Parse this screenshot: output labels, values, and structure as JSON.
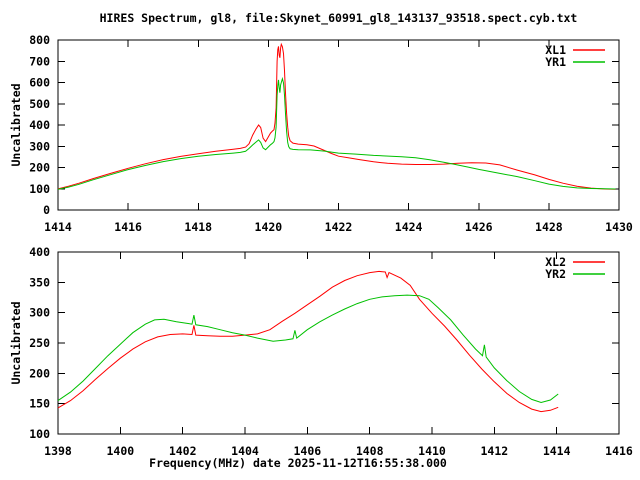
{
  "title": "HIRES Spectrum, gl8, file:Skynet_60991_gl8_143137_93518.spect.cyb.txt",
  "xlabel": "Frequency(MHz) date 2025-11-12T16:55:38.000",
  "colors": {
    "series_red": "#ff0000",
    "series_green": "#00c000",
    "axis": "#000000",
    "background": "#ffffff"
  },
  "chart_data": [
    {
      "type": "line",
      "ylabel": "Uncalibrated",
      "xlim": [
        1414,
        1430
      ],
      "ylim": [
        0,
        800
      ],
      "xticks": [
        1414,
        1416,
        1418,
        1420,
        1422,
        1424,
        1426,
        1428,
        1430
      ],
      "yticks": [
        0,
        100,
        200,
        300,
        400,
        500,
        600,
        700,
        800
      ],
      "grid": false,
      "legend_position": "top-right",
      "series": [
        {
          "name": "XL1",
          "color": "#ff0000",
          "points": [
            [
              1414,
              100
            ],
            [
              1414.3,
              112
            ],
            [
              1414.6,
              126
            ],
            [
              1415,
              148
            ],
            [
              1415.5,
              172
            ],
            [
              1416,
              196
            ],
            [
              1416.5,
              218
            ],
            [
              1417,
              237
            ],
            [
              1417.5,
              252
            ],
            [
              1418,
              265
            ],
            [
              1418.5,
              276
            ],
            [
              1419,
              286
            ],
            [
              1419.2,
              290
            ],
            [
              1419.35,
              296
            ],
            [
              1419.45,
              312
            ],
            [
              1419.55,
              352
            ],
            [
              1419.65,
              382
            ],
            [
              1419.72,
              400
            ],
            [
              1419.78,
              388
            ],
            [
              1419.85,
              338
            ],
            [
              1419.92,
              322
            ],
            [
              1420,
              345
            ],
            [
              1420.06,
              362
            ],
            [
              1420.12,
              372
            ],
            [
              1420.16,
              378
            ],
            [
              1420.19,
              410
            ],
            [
              1420.22,
              480
            ],
            [
              1420.25,
              700
            ],
            [
              1420.27,
              755
            ],
            [
              1420.29,
              770
            ],
            [
              1420.31,
              728
            ],
            [
              1420.33,
              716
            ],
            [
              1420.35,
              762
            ],
            [
              1420.37,
              780
            ],
            [
              1420.4,
              768
            ],
            [
              1420.43,
              736
            ],
            [
              1420.46,
              655
            ],
            [
              1420.49,
              540
            ],
            [
              1420.52,
              455
            ],
            [
              1420.55,
              390
            ],
            [
              1420.58,
              348
            ],
            [
              1420.62,
              326
            ],
            [
              1420.7,
              315
            ],
            [
              1420.85,
              310
            ],
            [
              1421.1,
              307
            ],
            [
              1421.3,
              301
            ],
            [
              1421.6,
              280
            ],
            [
              1421.8,
              266
            ],
            [
              1422,
              253
            ],
            [
              1422.3,
              245
            ],
            [
              1422.6,
              237
            ],
            [
              1423,
              227
            ],
            [
              1423.4,
              220
            ],
            [
              1423.8,
              216
            ],
            [
              1424.2,
              214
            ],
            [
              1424.6,
              214
            ],
            [
              1425,
              216
            ],
            [
              1425.4,
              220
            ],
            [
              1425.8,
              222
            ],
            [
              1426.2,
              221
            ],
            [
              1426.6,
              212
            ],
            [
              1427.1,
              188
            ],
            [
              1427.6,
              165
            ],
            [
              1428,
              144
            ],
            [
              1428.4,
              126
            ],
            [
              1428.8,
              112
            ],
            [
              1429.2,
              103
            ],
            [
              1429.6,
              99
            ],
            [
              1429.9,
              98
            ]
          ]
        },
        {
          "name": "YR1",
          "color": "#00c000",
          "points": [
            [
              1414,
              97
            ],
            [
              1414.3,
              108
            ],
            [
              1414.6,
              121
            ],
            [
              1415,
              142
            ],
            [
              1415.5,
              166
            ],
            [
              1416,
              190
            ],
            [
              1416.5,
              210
            ],
            [
              1417,
              228
            ],
            [
              1417.5,
              242
            ],
            [
              1418,
              253
            ],
            [
              1418.5,
              261
            ],
            [
              1419,
              268
            ],
            [
              1419.2,
              271
            ],
            [
              1419.35,
              276
            ],
            [
              1419.45,
              290
            ],
            [
              1419.55,
              306
            ],
            [
              1419.65,
              320
            ],
            [
              1419.72,
              330
            ],
            [
              1419.78,
              318
            ],
            [
              1419.85,
              292
            ],
            [
              1419.92,
              284
            ],
            [
              1420,
              297
            ],
            [
              1420.06,
              307
            ],
            [
              1420.12,
              315
            ],
            [
              1420.16,
              322
            ],
            [
              1420.19,
              340
            ],
            [
              1420.22,
              390
            ],
            [
              1420.25,
              540
            ],
            [
              1420.27,
              585
            ],
            [
              1420.29,
              612
            ],
            [
              1420.31,
              575
            ],
            [
              1420.33,
              552
            ],
            [
              1420.35,
              588
            ],
            [
              1420.37,
              600
            ],
            [
              1420.4,
              618
            ],
            [
              1420.43,
              598
            ],
            [
              1420.46,
              540
            ],
            [
              1420.49,
              445
            ],
            [
              1420.52,
              370
            ],
            [
              1420.55,
              318
            ],
            [
              1420.58,
              298
            ],
            [
              1420.62,
              288
            ],
            [
              1420.7,
              285
            ],
            [
              1420.85,
              284
            ],
            [
              1421.2,
              283
            ],
            [
              1421.6,
              277
            ],
            [
              1422,
              268
            ],
            [
              1422.5,
              263
            ],
            [
              1423,
              257
            ],
            [
              1423.5,
              253
            ],
            [
              1423.8,
              251
            ],
            [
              1424.2,
              246
            ],
            [
              1424.6,
              236
            ],
            [
              1425,
              225
            ],
            [
              1425.3,
              215
            ],
            [
              1425.7,
              202
            ],
            [
              1426,
              191
            ],
            [
              1426.6,
              172
            ],
            [
              1427.1,
              157
            ],
            [
              1427.6,
              138
            ],
            [
              1428,
              122
            ],
            [
              1428.4,
              111
            ],
            [
              1428.8,
              104
            ],
            [
              1429.2,
              101
            ],
            [
              1429.6,
              100
            ],
            [
              1429.9,
              99
            ]
          ]
        }
      ]
    },
    {
      "type": "line",
      "ylabel": "Uncalibrated",
      "xlim": [
        1398,
        1416
      ],
      "ylim": [
        100,
        400
      ],
      "xticks": [
        1398,
        1400,
        1402,
        1404,
        1406,
        1408,
        1410,
        1412,
        1414,
        1416
      ],
      "yticks": [
        100,
        150,
        200,
        250,
        300,
        350,
        400
      ],
      "grid": false,
      "legend_position": "top-right",
      "series": [
        {
          "name": "XL2",
          "color": "#ff0000",
          "points": [
            [
              1398,
              143
            ],
            [
              1398.4,
              155
            ],
            [
              1398.8,
              171
            ],
            [
              1399.2,
              190
            ],
            [
              1399.6,
              208
            ],
            [
              1400,
              225
            ],
            [
              1400.4,
              240
            ],
            [
              1400.8,
              252
            ],
            [
              1401.2,
              260
            ],
            [
              1401.6,
              264
            ],
            [
              1402,
              265
            ],
            [
              1402.3,
              264
            ],
            [
              1402.36,
              279
            ],
            [
              1402.42,
              263
            ],
            [
              1402.8,
              262
            ],
            [
              1403.2,
              261
            ],
            [
              1403.6,
              261
            ],
            [
              1404,
              263
            ],
            [
              1404.4,
              265
            ],
            [
              1404.8,
              272
            ],
            [
              1405.2,
              286
            ],
            [
              1405.6,
              299
            ],
            [
              1406,
              313
            ],
            [
              1406.4,
              327
            ],
            [
              1406.8,
              342
            ],
            [
              1407.2,
              353
            ],
            [
              1407.6,
              361
            ],
            [
              1408,
              366
            ],
            [
              1408.3,
              368
            ],
            [
              1408.5,
              367
            ],
            [
              1408.56,
              358
            ],
            [
              1408.62,
              366
            ],
            [
              1409,
              357
            ],
            [
              1409.3,
              345
            ],
            [
              1409.6,
              322
            ],
            [
              1410,
              299
            ],
            [
              1410.4,
              278
            ],
            [
              1410.8,
              255
            ],
            [
              1411.2,
              230
            ],
            [
              1411.6,
              207
            ],
            [
              1412,
              186
            ],
            [
              1412.4,
              167
            ],
            [
              1412.8,
              152
            ],
            [
              1413.2,
              141
            ],
            [
              1413.5,
              137
            ],
            [
              1413.8,
              139
            ],
            [
              1414.05,
              144
            ]
          ]
        },
        {
          "name": "YR2",
          "color": "#00c000",
          "points": [
            [
              1398,
              155
            ],
            [
              1398.4,
              169
            ],
            [
              1398.8,
              187
            ],
            [
              1399.2,
              208
            ],
            [
              1399.6,
              229
            ],
            [
              1400,
              248
            ],
            [
              1400.4,
              267
            ],
            [
              1400.8,
              281
            ],
            [
              1401.1,
              288
            ],
            [
              1401.4,
              289
            ],
            [
              1401.8,
              285
            ],
            [
              1402.2,
              282
            ],
            [
              1402.3,
              281
            ],
            [
              1402.36,
              296
            ],
            [
              1402.42,
              280
            ],
            [
              1402.8,
              277
            ],
            [
              1403.2,
              272
            ],
            [
              1403.6,
              267
            ],
            [
              1404,
              263
            ],
            [
              1404.4,
              258
            ],
            [
              1404.9,
              253
            ],
            [
              1405.3,
              255
            ],
            [
              1405.54,
              257
            ],
            [
              1405.6,
              271
            ],
            [
              1405.66,
              258
            ],
            [
              1406,
              272
            ],
            [
              1406.4,
              285
            ],
            [
              1406.8,
              296
            ],
            [
              1407.2,
              306
            ],
            [
              1407.6,
              315
            ],
            [
              1408,
              322
            ],
            [
              1408.4,
              326
            ],
            [
              1408.8,
              328
            ],
            [
              1409.2,
              329
            ],
            [
              1409.6,
              328
            ],
            [
              1409.9,
              322
            ],
            [
              1410.2,
              308
            ],
            [
              1410.6,
              288
            ],
            [
              1411,
              263
            ],
            [
              1411.4,
              240
            ],
            [
              1411.62,
              229
            ],
            [
              1411.68,
              247
            ],
            [
              1411.74,
              227
            ],
            [
              1412,
              209
            ],
            [
              1412.4,
              188
            ],
            [
              1412.8,
              170
            ],
            [
              1413.2,
              157
            ],
            [
              1413.5,
              152
            ],
            [
              1413.8,
              156
            ],
            [
              1414.05,
              166
            ]
          ]
        }
      ]
    }
  ]
}
